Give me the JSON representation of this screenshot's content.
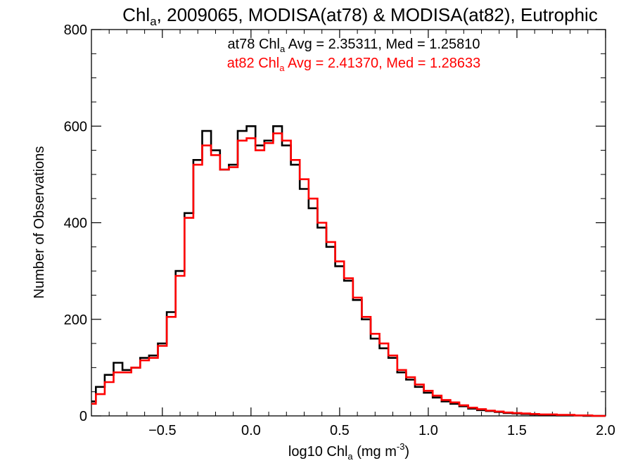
{
  "chart_data": {
    "type": "line",
    "title": {
      "prefix": "Chl",
      "sub": "a",
      "rest": ", 2009065, MODISA(at78) & MODISA(at82), Eutrophic"
    },
    "xlabel": {
      "prefix": "log10 Chl",
      "sub": "a",
      "middle": " (mg m",
      "sup": "-3",
      "end": ")"
    },
    "ylabel": "Number of Observations",
    "xlim": [
      -0.9,
      2.0
    ],
    "ylim": [
      0,
      800
    ],
    "xticks": [
      -0.5,
      0.0,
      0.5,
      1.0,
      1.5,
      2.0
    ],
    "xtick_labels": [
      "−0.5",
      "0.0",
      "0.5",
      "1.0",
      "1.5",
      "2.0"
    ],
    "yticks": [
      0,
      200,
      400,
      600,
      800
    ],
    "ytick_labels": [
      "0",
      "200",
      "400",
      "600",
      "800"
    ],
    "grid": false,
    "series": [
      {
        "name": "at78",
        "color": "#000000",
        "annotation": {
          "prefix": "at78 Chl",
          "sub": "a",
          "rest": " Avg = 2.35311, Med = 1.25810"
        },
        "x": [
          -0.9,
          -0.85,
          -0.8,
          -0.75,
          -0.7,
          -0.65,
          -0.6,
          -0.55,
          -0.5,
          -0.45,
          -0.4,
          -0.35,
          -0.3,
          -0.25,
          -0.2,
          -0.15,
          -0.1,
          -0.05,
          0.0,
          0.05,
          0.1,
          0.15,
          0.2,
          0.25,
          0.3,
          0.35,
          0.4,
          0.45,
          0.5,
          0.55,
          0.6,
          0.65,
          0.7,
          0.75,
          0.8,
          0.85,
          0.9,
          0.95,
          1.0,
          1.05,
          1.1,
          1.15,
          1.2,
          1.25,
          1.3,
          1.35,
          1.4,
          1.45,
          1.5,
          1.55,
          1.6,
          1.65,
          1.7,
          1.75,
          1.8,
          1.85,
          1.9,
          1.95,
          2.0
        ],
        "y": [
          30,
          60,
          85,
          110,
          95,
          100,
          120,
          125,
          150,
          215,
          300,
          420,
          530,
          590,
          550,
          510,
          520,
          590,
          600,
          560,
          570,
          600,
          560,
          520,
          470,
          430,
          390,
          350,
          310,
          280,
          240,
          200,
          160,
          140,
          120,
          90,
          75,
          60,
          48,
          38,
          30,
          25,
          20,
          15,
          12,
          10,
          8,
          6,
          5,
          4,
          3,
          2,
          2,
          1,
          1,
          1,
          0,
          0,
          0
        ]
      },
      {
        "name": "at82",
        "color": "#ff0000",
        "annotation": {
          "prefix": "at82 Chl",
          "sub": "a",
          "rest": " Avg = 2.41370, Med = 1.28633"
        },
        "x": [
          -0.9,
          -0.85,
          -0.8,
          -0.75,
          -0.7,
          -0.65,
          -0.6,
          -0.55,
          -0.5,
          -0.45,
          -0.4,
          -0.35,
          -0.3,
          -0.25,
          -0.2,
          -0.15,
          -0.1,
          -0.05,
          0.0,
          0.05,
          0.1,
          0.15,
          0.2,
          0.25,
          0.3,
          0.35,
          0.4,
          0.45,
          0.5,
          0.55,
          0.6,
          0.65,
          0.7,
          0.75,
          0.8,
          0.85,
          0.9,
          0.95,
          1.0,
          1.05,
          1.1,
          1.15,
          1.2,
          1.25,
          1.3,
          1.35,
          1.4,
          1.45,
          1.5,
          1.55,
          1.6,
          1.65,
          1.7,
          1.75,
          1.8,
          1.85,
          1.9,
          1.95,
          2.0
        ],
        "y": [
          25,
          45,
          70,
          90,
          90,
          100,
          115,
          120,
          145,
          205,
          290,
          410,
          520,
          560,
          540,
          510,
          515,
          570,
          575,
          550,
          565,
          585,
          570,
          530,
          490,
          450,
          400,
          360,
          320,
          285,
          245,
          205,
          170,
          150,
          125,
          95,
          80,
          65,
          52,
          42,
          33,
          28,
          22,
          17,
          14,
          11,
          9,
          7,
          6,
          5,
          4,
          3,
          3,
          2,
          2,
          1,
          1,
          0,
          0
        ]
      }
    ]
  }
}
